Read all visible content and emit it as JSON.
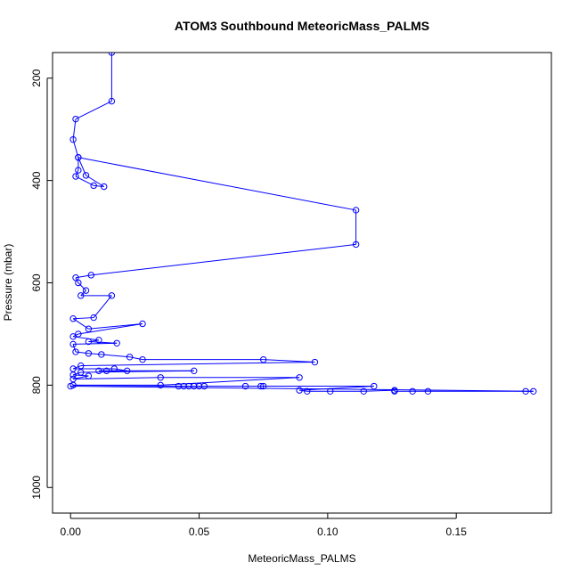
{
  "chart_data": {
    "type": "scatter",
    "title": "ATOM3 Southbound MeteoricMass_PALMS",
    "xlabel": "MeteoricMass_PALMS",
    "ylabel": "Pressure (mbar)",
    "xlim": [
      -0.007,
      0.187
    ],
    "ylim": [
      1050,
      150
    ],
    "y_reversed": true,
    "x_ticks": [
      0.0,
      0.05,
      0.1,
      0.15
    ],
    "x_tick_labels": [
      "0.00",
      "0.05",
      "0.10",
      "0.15"
    ],
    "y_ticks": [
      200,
      400,
      600,
      800,
      1000
    ],
    "y_tick_labels": [
      "200",
      "400",
      "600",
      "800",
      "1000"
    ],
    "grid": false,
    "legend": "none",
    "color": "#0000ff",
    "series": [
      {
        "values": [
          [
            0.016,
            150
          ],
          [
            0.016,
            245
          ],
          [
            0.002,
            280
          ],
          [
            0.001,
            320
          ],
          [
            0.003,
            355
          ],
          [
            0.003,
            380
          ],
          [
            0.002,
            392
          ],
          [
            0.009,
            410
          ],
          [
            0.013,
            412
          ],
          [
            0.006,
            390
          ],
          [
            0.003,
            355
          ],
          [
            0.111,
            458
          ],
          [
            0.111,
            525
          ],
          [
            0.008,
            585
          ],
          [
            0.002,
            590
          ],
          [
            0.003,
            600
          ],
          [
            0.006,
            615
          ],
          [
            0.004,
            625
          ],
          [
            0.016,
            625
          ],
          [
            0.009,
            668
          ],
          [
            0.001,
            670
          ],
          [
            0.007,
            690
          ],
          [
            0.028,
            680
          ],
          [
            0.003,
            700
          ],
          [
            0.001,
            705
          ],
          [
            0.011,
            712
          ],
          [
            0.007,
            715
          ],
          [
            0.018,
            718
          ],
          [
            0.001,
            720
          ],
          [
            0.002,
            735
          ],
          [
            0.007,
            738
          ],
          [
            0.012,
            740
          ],
          [
            0.023,
            745
          ],
          [
            0.028,
            750
          ],
          [
            0.075,
            750
          ],
          [
            0.095,
            755
          ],
          [
            0.004,
            762
          ],
          [
            0.001,
            768
          ],
          [
            0.017,
            768
          ],
          [
            0.022,
            772
          ],
          [
            0.014,
            772
          ],
          [
            0.011,
            772
          ],
          [
            0.048,
            772
          ],
          [
            0.004,
            775
          ],
          [
            0.001,
            780
          ],
          [
            0.007,
            782
          ],
          [
            0.001,
            788
          ],
          [
            0.035,
            785
          ],
          [
            0.089,
            785
          ],
          [
            0.035,
            800
          ],
          [
            0.001,
            800
          ],
          [
            0.042,
            802
          ],
          [
            0.044,
            802
          ],
          [
            0.046,
            802
          ],
          [
            0.048,
            802
          ],
          [
            0.05,
            802
          ],
          [
            0.052,
            802
          ],
          [
            0.068,
            802
          ],
          [
            0.074,
            802
          ],
          [
            0.075,
            802
          ],
          [
            0.118,
            802
          ],
          [
            0.089,
            810
          ],
          [
            0.092,
            812
          ],
          [
            0.101,
            812
          ],
          [
            0.114,
            812
          ],
          [
            0.126,
            810
          ],
          [
            0.126,
            812
          ],
          [
            0.133,
            812
          ],
          [
            0.139,
            812
          ],
          [
            0.177,
            812
          ],
          [
            0.18,
            812
          ],
          [
            0.0,
            802
          ]
        ]
      }
    ]
  }
}
